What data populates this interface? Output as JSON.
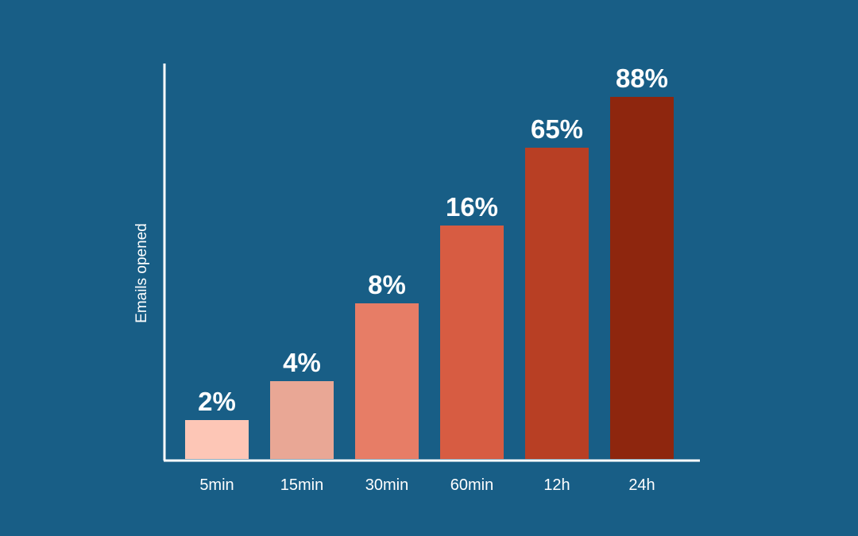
{
  "chart_data": {
    "type": "bar",
    "title": "",
    "xlabel": "",
    "ylabel": "Emails opened",
    "categories": [
      "5min",
      "15min",
      "30min",
      "60min",
      "12h",
      "24h"
    ],
    "values": [
      2,
      4,
      8,
      16,
      65,
      88
    ],
    "value_labels": [
      "2%",
      "4%",
      "8%",
      "16%",
      "65%",
      "88%"
    ],
    "bar_colors": [
      "#fdc6b6",
      "#e9a795",
      "#e77d66",
      "#d75c42",
      "#b83f24",
      "#8e260e"
    ],
    "axis_color": "#ffffff",
    "background": "#185e86",
    "grid": false,
    "legend": "none",
    "scale": "nonlinear (bar heights not proportional to values)"
  }
}
